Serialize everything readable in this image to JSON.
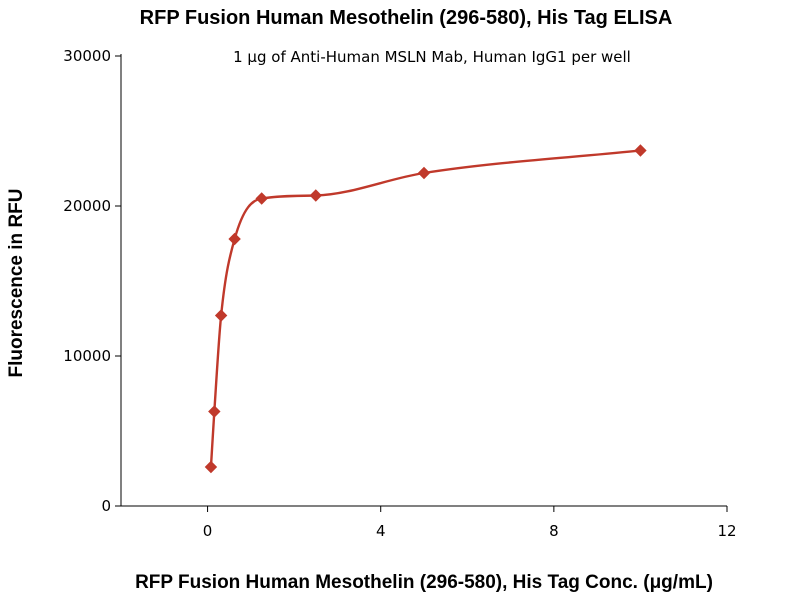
{
  "chart_data": {
    "type": "scatter",
    "title": "RFP Fusion Human Mesothelin (296-580), His Tag ELISA",
    "subtitle": "1 μg of Anti-Human MSLN Mab, Human IgG1 per well",
    "xlabel": "RFP Fusion Human Mesothelin (296-580), His Tag Conc. (μg/mL)",
    "ylabel": "Fluorescence in RFU",
    "xlim": [
      -2,
      12
    ],
    "ylim": [
      0,
      30000
    ],
    "x_ticks": [
      "0",
      "4",
      "8",
      "12"
    ],
    "y_ticks": [
      "0",
      "10000",
      "20000",
      "30000"
    ],
    "grid": false,
    "legend": "none",
    "series": [
      {
        "x": [
          0.078,
          0.156,
          0.313,
          0.625,
          1.25,
          2.5,
          5,
          10
        ],
        "y": [
          2600,
          6300,
          12700,
          17800,
          20500,
          20700,
          22200,
          23700
        ],
        "color": "#c0392b",
        "marker": "diamond",
        "fit_curve": true
      }
    ]
  }
}
